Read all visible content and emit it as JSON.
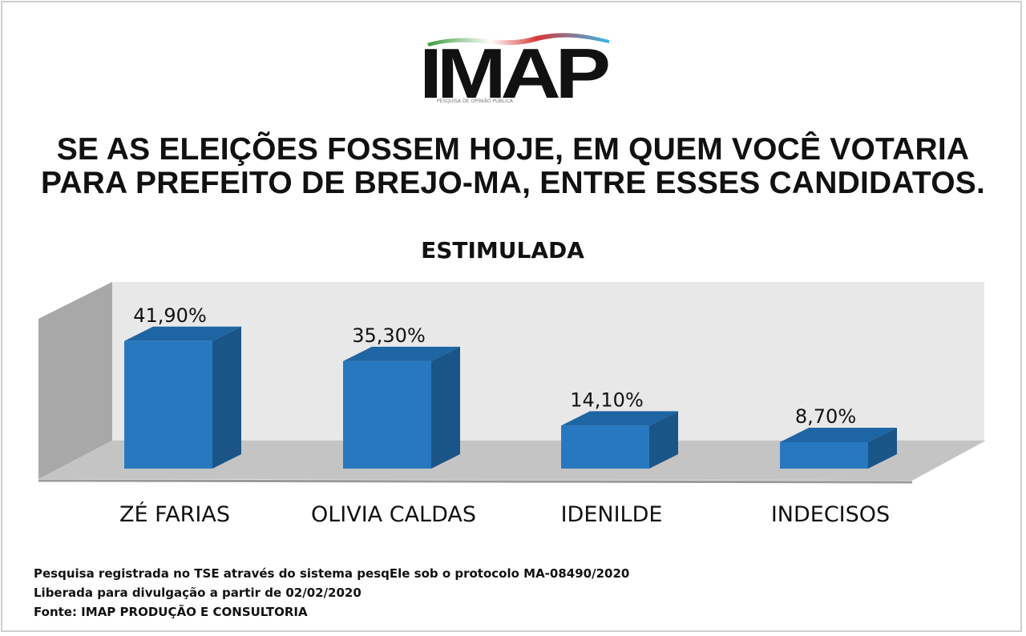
{
  "header": {
    "logo_text": "IMAP",
    "logo_tagline": "PESQUISA DE OPINIÃO PÚBLICA",
    "title_line1": "SE AS ELEIÇÕES FOSSEM HOJE, EM QUEM VOCÊ VOTARIA",
    "title_line2": "PARA PREFEITO DE BREJO-MA, ENTRE ESSES CANDIDATOS."
  },
  "chart_data": {
    "type": "bar",
    "title": "ESTIMULADA",
    "categories": [
      "ZÉ FARIAS",
      "OLIVIA CALDAS",
      "IDENILDE",
      "INDECISOS"
    ],
    "values": [
      41.9,
      35.3,
      14.1,
      8.7
    ],
    "value_labels": [
      "41,90%",
      "35,30%",
      "14,10%",
      "8,70%"
    ],
    "unit": "%",
    "ylim": [
      0,
      50
    ],
    "grid": false,
    "legend": "none",
    "style": "3d",
    "colors": {
      "bar_front": "#2878c0",
      "bar_side": "#1a5588",
      "bar_top": "#1d65a3",
      "back_wall": "#e8e8e8",
      "side_wall": "#a8a8a8",
      "floor": "#c4c4c4"
    }
  },
  "footer": {
    "line1": "Pesquisa registrada no TSE através do sistema pesqEle sob o protocolo MA-08490/2020",
    "line2": "Liberada para divulgação a partir de 02/02/2020",
    "line3": "Fonte: IMAP PRODUÇÃO E CONSULTORIA"
  }
}
